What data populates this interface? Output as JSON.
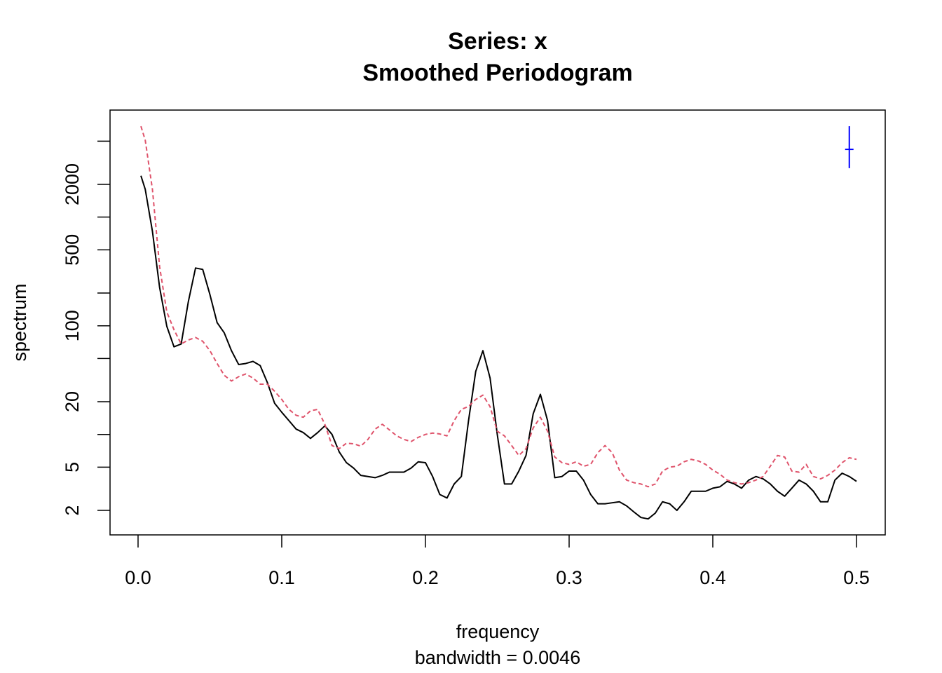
{
  "chart_data": {
    "type": "line",
    "title": "Series: x",
    "subtitle": "Smoothed Periodogram",
    "x_label": "frequency",
    "x_sublabel": "bandwidth = 0.0046",
    "y_label": "spectrum",
    "log_y": true,
    "xlim": [
      -0.0195,
      0.52
    ],
    "ylim": [
      1.19,
      9660
    ],
    "xticks": [
      {
        "value": 0,
        "label": "0.0"
      },
      0.1,
      0.2,
      0.3,
      0.4,
      0.5
    ],
    "yticks": [
      2,
      5,
      20,
      100,
      500,
      2000
    ],
    "yminor_ticks": [
      10,
      50,
      200,
      1000,
      5000
    ],
    "x": [
      0.002,
      0.005,
      0.01,
      0.015,
      0.02,
      0.025,
      0.03,
      0.035,
      0.04,
      0.045,
      0.05,
      0.055,
      0.06,
      0.065,
      0.07,
      0.075,
      0.08,
      0.085,
      0.09,
      0.095,
      0.1,
      0.105,
      0.11,
      0.115,
      0.12,
      0.125,
      0.13,
      0.135,
      0.14,
      0.145,
      0.15,
      0.155,
      0.16,
      0.165,
      0.17,
      0.175,
      0.18,
      0.185,
      0.19,
      0.195,
      0.2,
      0.205,
      0.21,
      0.215,
      0.22,
      0.225,
      0.23,
      0.235,
      0.24,
      0.245,
      0.25,
      0.255,
      0.26,
      0.265,
      0.27,
      0.275,
      0.28,
      0.285,
      0.29,
      0.295,
      0.3,
      0.305,
      0.31,
      0.315,
      0.32,
      0.325,
      0.33,
      0.335,
      0.34,
      0.345,
      0.35,
      0.355,
      0.36,
      0.365,
      0.37,
      0.375,
      0.38,
      0.385,
      0.39,
      0.395,
      0.4,
      0.405,
      0.41,
      0.415,
      0.42,
      0.425,
      0.43,
      0.435,
      0.44,
      0.445,
      0.45,
      0.455,
      0.46,
      0.465,
      0.47,
      0.475,
      0.48,
      0.485,
      0.49,
      0.495,
      0.5
    ],
    "series": [
      {
        "color": "#000000",
        "dashed": false,
        "values": [
          2400,
          1800,
          740,
          225,
          99,
          64,
          68,
          167,
          340,
          330,
          194,
          107,
          86,
          59,
          44,
          45,
          47,
          43,
          30,
          19.4,
          16,
          13.4,
          11.2,
          10.4,
          9.2,
          10.4,
          12,
          10,
          6.9,
          5.5,
          4.9,
          4.2,
          4.1,
          4.0,
          4.2,
          4.5,
          4.5,
          4.5,
          4.9,
          5.6,
          5.5,
          4.1,
          2.8,
          2.6,
          3.5,
          4.1,
          13.4,
          38,
          59,
          33,
          10,
          3.5,
          3.5,
          4.6,
          6.4,
          15.5,
          23.4,
          13.4,
          4.0,
          4.1,
          4.6,
          4.6,
          3.8,
          2.8,
          2.3,
          2.3,
          2.35,
          2.4,
          2.2,
          1.94,
          1.72,
          1.67,
          1.89,
          2.4,
          2.3,
          2.0,
          2.4,
          3.0,
          3.0,
          3.0,
          3.2,
          3.3,
          3.7,
          3.5,
          3.2,
          3.8,
          4.1,
          3.9,
          3.5,
          3.0,
          2.7,
          3.2,
          3.8,
          3.5,
          3.0,
          2.4,
          2.4,
          3.8,
          4.4,
          4.1,
          3.7
        ]
      },
      {
        "color": "#DF536B",
        "dashed": true,
        "values": [
          6860,
          5100,
          1800,
          350,
          134,
          92,
          68,
          74,
          78,
          72,
          59,
          45,
          35,
          31,
          34,
          36,
          33,
          29,
          29,
          25,
          21,
          17,
          15,
          14.4,
          16.5,
          17,
          12.4,
          7.9,
          7.4,
          8.3,
          8.2,
          7.8,
          9.0,
          11.2,
          12.4,
          11,
          9.7,
          9.0,
          8.6,
          9.4,
          10,
          10.3,
          10.1,
          9.7,
          13.4,
          17,
          18.1,
          21,
          23,
          18,
          10.7,
          9.7,
          7.9,
          6.4,
          7.4,
          11.5,
          14.4,
          10.7,
          6.2,
          5.5,
          5.3,
          5.6,
          5.1,
          5.3,
          6.8,
          7.9,
          6.8,
          4.7,
          3.8,
          3.6,
          3.5,
          3.3,
          3.5,
          4.6,
          5.0,
          5.1,
          5.6,
          5.9,
          5.7,
          5.3,
          4.7,
          4.3,
          3.8,
          3.6,
          3.5,
          3.6,
          3.8,
          4.1,
          5.1,
          6.4,
          6.2,
          4.6,
          4.5,
          5.3,
          4.1,
          3.9,
          4.2,
          4.7,
          5.5,
          6.1,
          5.9
        ]
      }
    ],
    "ci_bar": {
      "x": 0.495,
      "center": 4200,
      "lower": 2820,
      "upper": 6860,
      "color": "#0000FF"
    }
  }
}
